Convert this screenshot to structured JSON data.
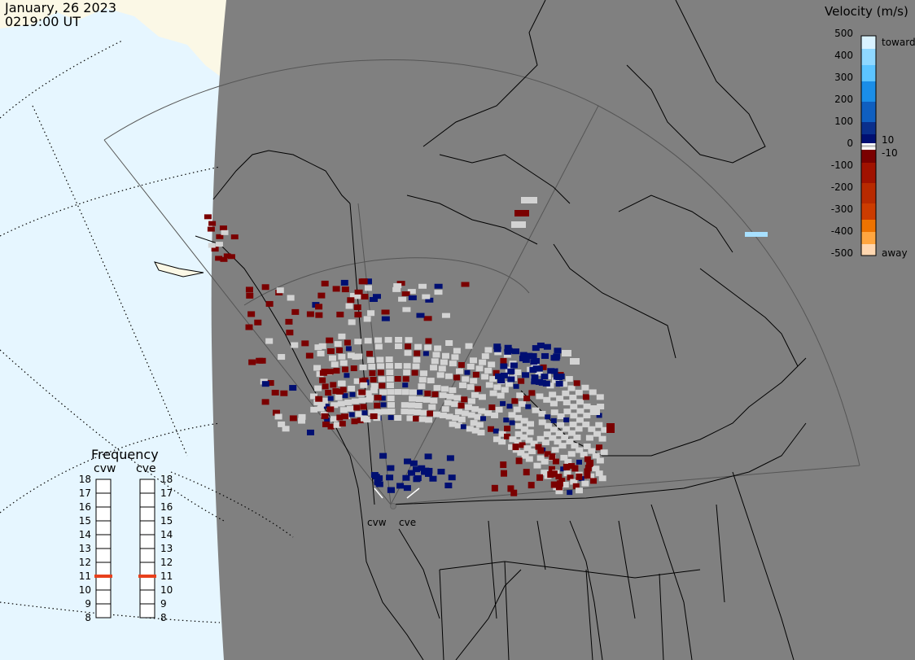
{
  "header": {
    "date": "January, 26 2023",
    "time": "0219:00 UT"
  },
  "legend": {
    "title": "Velocity (m/s)",
    "ticks": [
      "500",
      "400",
      "300",
      "200",
      "100",
      "10",
      "0",
      "-10",
      "-100",
      "-200",
      "-300",
      "-400",
      "-500"
    ],
    "toward_label": "toward",
    "away_label": "away",
    "colors": {
      "500": "#d9f2ff",
      "400": "#5cc4ff",
      "300": "#1a8ee8",
      "200": "#0f5fc0",
      "100": "#0a2f8c",
      "10": "#000f72",
      "-10": "#7a0000",
      "-100": "#a01200",
      "-200": "#cc3c00",
      "-300": "#ee7300",
      "-400": "#ffa640",
      "-500": "#ffd7b0"
    }
  },
  "frequency": {
    "title": "Frequency",
    "radars": [
      {
        "name": "cvw",
        "selected_mhz": 11
      },
      {
        "name": "cve",
        "selected_mhz": 11
      }
    ],
    "scale": [
      18,
      17,
      16,
      15,
      14,
      13,
      12,
      11,
      10,
      9,
      8
    ],
    "indicator_color": "#e8401c"
  },
  "map": {
    "land_color": "#808080",
    "ocean_color": "#e6f6ff",
    "nightside_land_color": "#fbf8e6",
    "ground_scatter_color": "#d3d3d3",
    "radar_sites": [
      "cvw",
      "cve"
    ]
  }
}
